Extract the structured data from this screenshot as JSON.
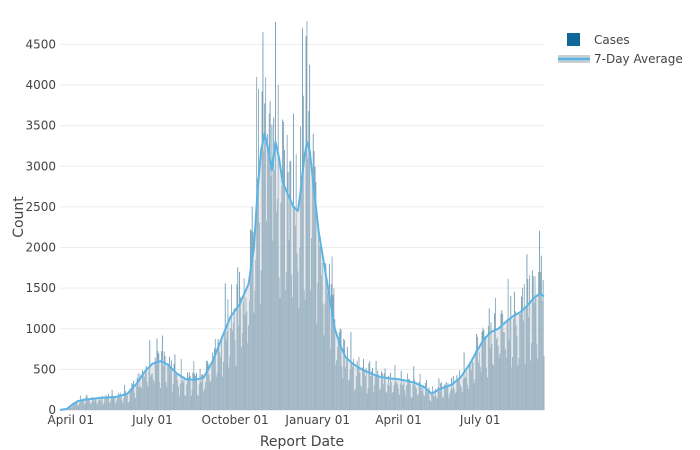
{
  "chart_data": {
    "type": "bar",
    "x_axis": {
      "label": "Report Date",
      "ticks": [
        {
          "label": "April 01",
          "day": 12
        },
        {
          "label": "July 01",
          "day": 103
        },
        {
          "label": "October 01",
          "day": 195
        },
        {
          "label": "January 01",
          "day": 287
        },
        {
          "label": "April 01",
          "day": 377
        },
        {
          "label": "July 01",
          "day": 468
        }
      ],
      "range_days": [
        0,
        539
      ]
    },
    "y_axis": {
      "label": "Count",
      "ticks": [
        0,
        500,
        1000,
        1500,
        2000,
        2500,
        3000,
        3500,
        4000,
        4500
      ],
      "range": [
        0,
        4800
      ],
      "grid": true
    },
    "legend": {
      "position": "top-right",
      "entries": [
        {
          "name": "Cases",
          "color": "#10689a"
        },
        {
          "name": "7-Day Average",
          "color": "#5ab4e6"
        }
      ]
    },
    "series": [
      {
        "name": "Cases",
        "kind": "bar",
        "color": "#4c8aa8"
      },
      {
        "name": "7-Day Average",
        "kind": "line",
        "color": "#5ab4e6"
      }
    ],
    "avg_anchors": [
      [
        0,
        0
      ],
      [
        8,
        15
      ],
      [
        14,
        70
      ],
      [
        20,
        110
      ],
      [
        30,
        130
      ],
      [
        45,
        150
      ],
      [
        62,
        160
      ],
      [
        75,
        200
      ],
      [
        85,
        320
      ],
      [
        95,
        480
      ],
      [
        103,
        570
      ],
      [
        112,
        600
      ],
      [
        120,
        560
      ],
      [
        130,
        450
      ],
      [
        140,
        380
      ],
      [
        150,
        370
      ],
      [
        160,
        400
      ],
      [
        170,
        600
      ],
      [
        180,
        880
      ],
      [
        190,
        1150
      ],
      [
        200,
        1300
      ],
      [
        210,
        1550
      ],
      [
        216,
        2000
      ],
      [
        220,
        2700
      ],
      [
        224,
        3200
      ],
      [
        228,
        3400
      ],
      [
        232,
        3200
      ],
      [
        236,
        2950
      ],
      [
        240,
        3300
      ],
      [
        244,
        3100
      ],
      [
        248,
        2800
      ],
      [
        254,
        2650
      ],
      [
        260,
        2500
      ],
      [
        265,
        2450
      ],
      [
        268,
        2700
      ],
      [
        272,
        3100
      ],
      [
        275,
        3300
      ],
      [
        278,
        3200
      ],
      [
        282,
        2800
      ],
      [
        288,
        2200
      ],
      [
        294,
        1800
      ],
      [
        300,
        1400
      ],
      [
        306,
        1000
      ],
      [
        312,
        800
      ],
      [
        318,
        650
      ],
      [
        326,
        570
      ],
      [
        336,
        500
      ],
      [
        346,
        450
      ],
      [
        356,
        410
      ],
      [
        366,
        390
      ],
      [
        376,
        380
      ],
      [
        386,
        360
      ],
      [
        396,
        330
      ],
      [
        406,
        280
      ],
      [
        414,
        200
      ],
      [
        420,
        240
      ],
      [
        428,
        280
      ],
      [
        436,
        310
      ],
      [
        446,
        400
      ],
      [
        456,
        560
      ],
      [
        464,
        720
      ],
      [
        472,
        870
      ],
      [
        480,
        960
      ],
      [
        488,
        1000
      ],
      [
        496,
        1080
      ],
      [
        504,
        1150
      ],
      [
        512,
        1200
      ],
      [
        520,
        1280
      ],
      [
        528,
        1380
      ],
      [
        534,
        1430
      ],
      [
        539,
        1400
      ]
    ],
    "spikes": [
      [
        219,
        4100
      ],
      [
        221,
        3950
      ],
      [
        226,
        4650
      ],
      [
        231,
        3400
      ],
      [
        238,
        3600
      ],
      [
        243,
        4000
      ],
      [
        250,
        3200
      ],
      [
        260,
        3650
      ],
      [
        270,
        4700
      ],
      [
        274,
        4600
      ],
      [
        278,
        4250
      ],
      [
        282,
        3400
      ],
      [
        100,
        860
      ],
      [
        108,
        880
      ],
      [
        116,
        720
      ],
      [
        200,
        1700
      ],
      [
        214,
        2500
      ],
      [
        517,
        1550
      ],
      [
        527,
        1650
      ],
      [
        533,
        1700
      ],
      [
        536,
        1900
      ],
      [
        538,
        1600
      ],
      [
        300,
        1800
      ],
      [
        305,
        1500
      ]
    ]
  }
}
